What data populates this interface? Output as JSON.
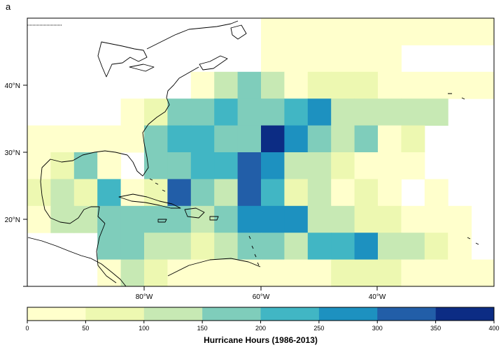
{
  "panel_label": "a",
  "legend": {
    "title": "Hurricane Hours (1986-2013)",
    "ticks": [
      "0",
      "50",
      "100",
      "150",
      "200",
      "250",
      "300",
      "350",
      "400"
    ],
    "colors": [
      "#ffffcc",
      "#edf8b1",
      "#c7e9b4",
      "#7fcdbb",
      "#41b6c4",
      "#1d91c0",
      "#225ea8",
      "#0c2c84"
    ]
  },
  "map": {
    "lon_labels": [
      "80°W",
      "60°W",
      "40°W"
    ],
    "lat_labels": [
      "20°N",
      "30°N",
      "40°N"
    ],
    "cell_deg": 4,
    "rows": [
      {
        "lat_top": 50,
        "cells": [
          [
            -60,
            0
          ],
          [
            -56,
            0
          ],
          [
            -52,
            0
          ],
          [
            -48,
            0
          ],
          [
            -44,
            0
          ],
          [
            -40,
            0
          ],
          [
            -36,
            0
          ],
          [
            -32,
            0
          ],
          [
            -28,
            0
          ],
          [
            -24,
            0
          ],
          [
            -20,
            0
          ]
        ]
      },
      {
        "lat_top": 46,
        "cells": [
          [
            -60,
            0
          ],
          [
            -56,
            0
          ],
          [
            -52,
            0
          ],
          [
            -48,
            0
          ],
          [
            -44,
            0
          ],
          [
            -40,
            0
          ]
        ]
      },
      {
        "lat_top": 42,
        "cells": [
          [
            -72,
            0
          ],
          [
            -68,
            2
          ],
          [
            -64,
            3
          ],
          [
            -60,
            2
          ],
          [
            -56,
            0
          ],
          [
            -52,
            1
          ],
          [
            -48,
            1
          ],
          [
            -44,
            1
          ],
          [
            -40,
            0
          ],
          [
            -36,
            0
          ],
          [
            -32,
            0
          ],
          [
            -28,
            0
          ],
          [
            -24,
            0
          ],
          [
            -20,
            0
          ]
        ]
      },
      {
        "lat_top": 38,
        "cells": [
          [
            -84,
            0
          ],
          [
            -80,
            1
          ],
          [
            -76,
            3
          ],
          [
            -72,
            3
          ],
          [
            -68,
            4
          ],
          [
            -64,
            3
          ],
          [
            -60,
            3
          ],
          [
            -56,
            4
          ],
          [
            -52,
            5
          ],
          [
            -48,
            2
          ],
          [
            -44,
            2
          ],
          [
            -40,
            2
          ],
          [
            -36,
            2
          ],
          [
            -32,
            2
          ]
        ]
      },
      {
        "lat_top": 34,
        "cells": [
          [
            -100,
            0
          ],
          [
            -96,
            0
          ],
          [
            -92,
            0
          ],
          [
            -88,
            0
          ],
          [
            -84,
            0
          ],
          [
            -80,
            3
          ],
          [
            -76,
            4
          ],
          [
            -72,
            4
          ],
          [
            -68,
            3
          ],
          [
            -64,
            3
          ],
          [
            -60,
            7
          ],
          [
            -56,
            5
          ],
          [
            -52,
            3
          ],
          [
            -48,
            2
          ],
          [
            -44,
            3
          ],
          [
            -40,
            0
          ],
          [
            -36,
            1
          ]
        ]
      },
      {
        "lat_top": 30,
        "cells": [
          [
            -100,
            0
          ],
          [
            -96,
            1
          ],
          [
            -92,
            3
          ],
          [
            -88,
            0
          ],
          [
            -80,
            3
          ],
          [
            -76,
            3
          ],
          [
            -72,
            4
          ],
          [
            -68,
            4
          ],
          [
            -64,
            6
          ],
          [
            -60,
            5
          ],
          [
            -56,
            2
          ],
          [
            -52,
            2
          ],
          [
            -48,
            1
          ],
          [
            -44,
            0
          ],
          [
            -40,
            0
          ],
          [
            -36,
            0
          ]
        ]
      },
      {
        "lat_top": 26,
        "cells": [
          [
            -100,
            1
          ],
          [
            -96,
            2
          ],
          [
            -92,
            1
          ],
          [
            -88,
            4
          ],
          [
            -84,
            0
          ],
          [
            -80,
            1
          ],
          [
            -76,
            6
          ],
          [
            -72,
            3
          ],
          [
            -68,
            2
          ],
          [
            -64,
            6
          ],
          [
            -60,
            4
          ],
          [
            -56,
            1
          ],
          [
            -52,
            2
          ],
          [
            -48,
            0
          ],
          [
            -44,
            1
          ],
          [
            -40,
            0
          ],
          [
            -32,
            0
          ]
        ]
      },
      {
        "lat_top": 22,
        "cells": [
          [
            -100,
            0
          ],
          [
            -96,
            2
          ],
          [
            -92,
            2
          ],
          [
            -88,
            3
          ],
          [
            -84,
            3
          ],
          [
            -80,
            3
          ],
          [
            -76,
            3
          ],
          [
            -72,
            2
          ],
          [
            -68,
            3
          ],
          [
            -64,
            5
          ],
          [
            -60,
            5
          ],
          [
            -56,
            5
          ],
          [
            -52,
            2
          ],
          [
            -48,
            2
          ],
          [
            -44,
            1
          ],
          [
            -40,
            1
          ],
          [
            -36,
            0
          ],
          [
            -32,
            0
          ],
          [
            -28,
            0
          ]
        ]
      },
      {
        "lat_top": 18,
        "cells": [
          [
            -88,
            3
          ],
          [
            -84,
            3
          ],
          [
            -80,
            2
          ],
          [
            -76,
            2
          ],
          [
            -72,
            1
          ],
          [
            -68,
            2
          ],
          [
            -64,
            3
          ],
          [
            -60,
            3
          ],
          [
            -56,
            2
          ],
          [
            -52,
            4
          ],
          [
            -48,
            4
          ],
          [
            -44,
            5
          ],
          [
            -40,
            2
          ],
          [
            -36,
            2
          ],
          [
            -32,
            1
          ],
          [
            -28,
            0
          ]
        ]
      },
      {
        "lat_top": 14,
        "cells": [
          [
            -88,
            0
          ],
          [
            -84,
            2
          ],
          [
            -80,
            1
          ],
          [
            -76,
            0
          ],
          [
            -72,
            0
          ],
          [
            -68,
            0
          ],
          [
            -64,
            0
          ],
          [
            -60,
            0
          ],
          [
            -56,
            0
          ],
          [
            -52,
            0
          ],
          [
            -48,
            1
          ],
          [
            -44,
            1
          ],
          [
            -40,
            1
          ],
          [
            -36,
            0
          ],
          [
            -32,
            0
          ],
          [
            -28,
            0
          ],
          [
            -24,
            0
          ],
          [
            -20,
            0
          ]
        ]
      }
    ]
  }
}
